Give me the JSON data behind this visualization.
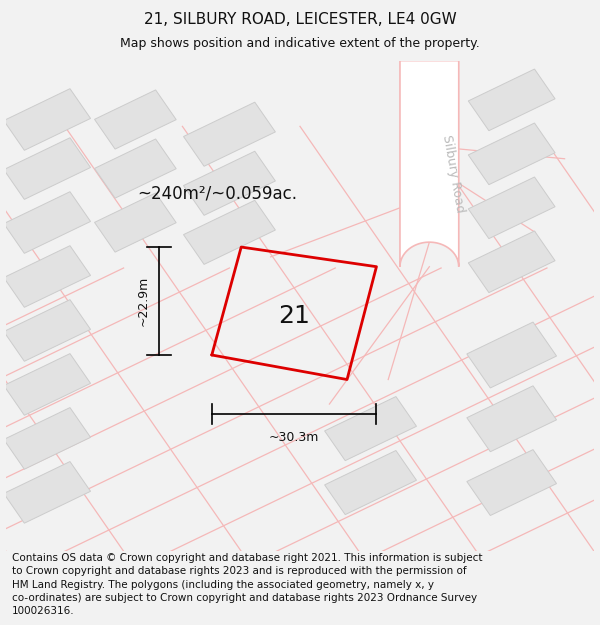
{
  "title": "21, SILBURY ROAD, LEICESTER, LE4 0GW",
  "subtitle": "Map shows position and indicative extent of the property.",
  "footer": "Contains OS data © Crown copyright and database right 2021. This information is subject\nto Crown copyright and database rights 2023 and is reproduced with the permission of\nHM Land Registry. The polygons (including the associated geometry, namely x, y\nco-ordinates) are subject to Crown copyright and database rights 2023 Ordnance Survey\n100026316.",
  "area_label": "~240m²/~0.059ac.",
  "number_label": "21",
  "width_label": "~30.3m",
  "height_label": "~22.9m",
  "road_label": "Silbury Road",
  "bg_color": "#f2f2f2",
  "map_bg": "#ffffff",
  "road_line_color": "#f5b8b8",
  "property_color": "#dd0000",
  "dim_color": "#000000",
  "building_fill": "#e2e2e2",
  "building_edge": "#cccccc",
  "title_fontsize": 11,
  "subtitle_fontsize": 9,
  "footer_fontsize": 7.5,
  "area_fontsize": 12,
  "number_fontsize": 18,
  "dim_fontsize": 9,
  "road_label_fontsize": 9,
  "road_label_color": "#bbbbbb"
}
